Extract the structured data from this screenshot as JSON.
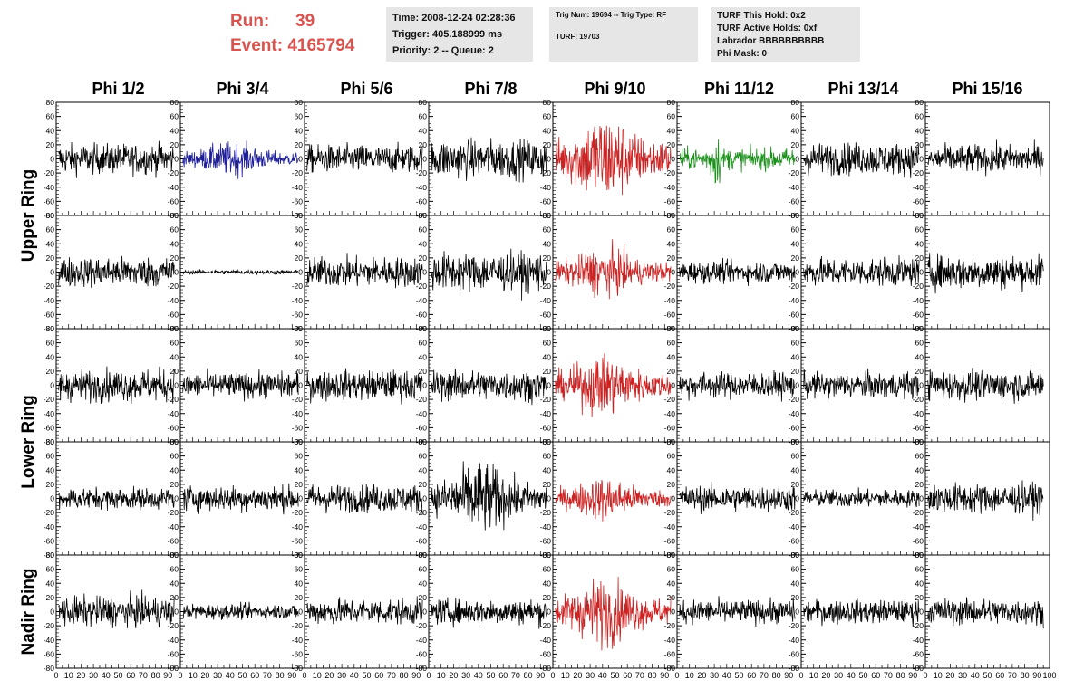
{
  "header": {
    "run_label": "Run:",
    "run_value": "39",
    "event_label": "Event:",
    "event_value": "4165794"
  },
  "info_box_1": {
    "time": "Time: 2008-12-24 02:28:36",
    "trigger": "Trigger: 405.188999 ms",
    "priority": "Priority: 2 -- Queue: 2"
  },
  "info_box_2": {
    "trig": "Trig Num: 19694 -- Trig Type: RF",
    "turf": "TURF: 19703"
  },
  "info_box_3": {
    "this_hold": "TURF This Hold: 0x2",
    "active_holds": "TURF Active Holds: 0xf",
    "labrador": "Labrador BBBBBBBBBB",
    "phi_mask": "Phi Mask: 0"
  },
  "colors": {
    "default": "#000000",
    "blue": "#1f1f9a",
    "red": "#cc2222",
    "green": "#1a8f1a"
  },
  "chart_data": {
    "type": "line",
    "columns": [
      "Phi 1/2",
      "Phi 3/4",
      "Phi 5/6",
      "Phi 7/8",
      "Phi 9/10",
      "Phi 11/12",
      "Phi 13/14",
      "Phi 15/16"
    ],
    "row_labels": [
      "Upper Ring",
      "Lower Ring",
      "Nadir Ring"
    ],
    "rows": 5,
    "xlim": [
      0,
      100
    ],
    "ylim": [
      -80,
      80
    ],
    "x_ticks": [
      0,
      10,
      20,
      30,
      40,
      50,
      60,
      70,
      80,
      90
    ],
    "last_x_tick": 100,
    "y_ticks": [
      80,
      60,
      40,
      20,
      0,
      -20,
      -40,
      -60,
      -80
    ],
    "samples": 260,
    "panels": [
      [
        {
          "amp": 14,
          "color": "default"
        },
        {
          "amp": 11,
          "color": "blue",
          "envelope": true
        },
        {
          "amp": 13,
          "color": "default"
        },
        {
          "amp": 18,
          "color": "default"
        },
        {
          "amp": 30,
          "color": "red",
          "envelope": true
        },
        {
          "amp": 10,
          "color": "green",
          "spike": true
        },
        {
          "amp": 15,
          "color": "default"
        },
        {
          "amp": 13,
          "color": "default"
        }
      ],
      [
        {
          "amp": 14,
          "color": "default"
        },
        {
          "amp": 2,
          "color": "default"
        },
        {
          "amp": 14,
          "color": "default"
        },
        {
          "amp": 18,
          "color": "default"
        },
        {
          "amp": 16,
          "color": "red",
          "envelope": true
        },
        {
          "amp": 10,
          "color": "default"
        },
        {
          "amp": 13,
          "color": "default"
        },
        {
          "amp": 16,
          "color": "default"
        }
      ],
      [
        {
          "amp": 15,
          "color": "default"
        },
        {
          "amp": 12,
          "color": "default"
        },
        {
          "amp": 14,
          "color": "default"
        },
        {
          "amp": 14,
          "color": "default"
        },
        {
          "amp": 20,
          "color": "red",
          "envelope": true
        },
        {
          "amp": 12,
          "color": "default"
        },
        {
          "amp": 12,
          "color": "default"
        },
        {
          "amp": 14,
          "color": "default"
        }
      ],
      [
        {
          "amp": 10,
          "color": "default"
        },
        {
          "amp": 12,
          "color": "default"
        },
        {
          "amp": 13,
          "color": "default"
        },
        {
          "amp": 24,
          "color": "default",
          "envelope": true
        },
        {
          "amp": 14,
          "color": "red",
          "envelope": true
        },
        {
          "amp": 12,
          "color": "default"
        },
        {
          "amp": 8,
          "color": "default"
        },
        {
          "amp": 14,
          "color": "default"
        }
      ],
      [
        {
          "amp": 14,
          "color": "default"
        },
        {
          "amp": 7,
          "color": "default"
        },
        {
          "amp": 12,
          "color": "default"
        },
        {
          "amp": 12,
          "color": "default"
        },
        {
          "amp": 22,
          "color": "red",
          "envelope": true
        },
        {
          "amp": 11,
          "color": "default"
        },
        {
          "amp": 11,
          "color": "default"
        },
        {
          "amp": 12,
          "color": "default"
        }
      ]
    ]
  }
}
